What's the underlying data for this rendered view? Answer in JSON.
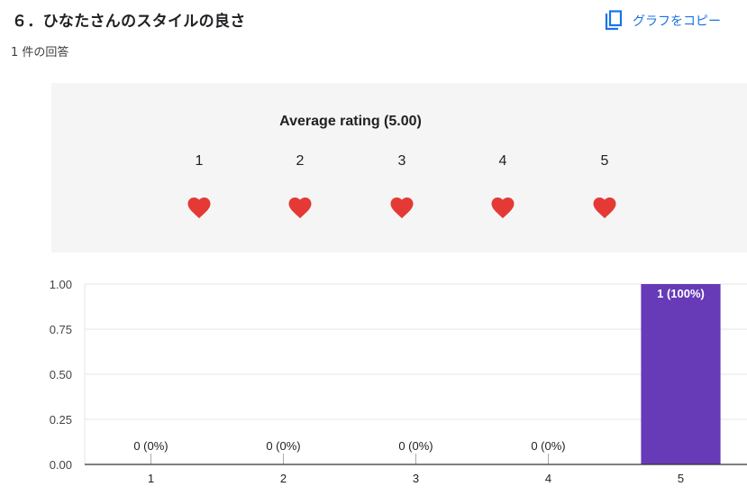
{
  "question": {
    "title": "６．ひなたさんのスタイルの良さ",
    "response_count": "1 件の回答"
  },
  "copy_chart": {
    "label": "グラフをコピー",
    "icon": "copy-icon",
    "color": "#1a73e8"
  },
  "rating": {
    "average_label": "Average rating (5.00)",
    "scale": [
      "1",
      "2",
      "3",
      "4",
      "5"
    ],
    "icon": "heart-icon",
    "icon_color": "#e53935"
  },
  "chart_data": {
    "type": "bar",
    "categories": [
      "1",
      "2",
      "3",
      "4",
      "5"
    ],
    "values": [
      0,
      0,
      0,
      0,
      1
    ],
    "data_labels": [
      "0 (0%)",
      "0 (0%)",
      "0 (0%)",
      "0 (0%)",
      "1 (100%)"
    ],
    "yticks": [
      "0.00",
      "0.25",
      "0.50",
      "0.75",
      "1.00"
    ],
    "ylim": [
      0,
      1
    ],
    "grid": true,
    "bar_color": "#673ab7"
  }
}
